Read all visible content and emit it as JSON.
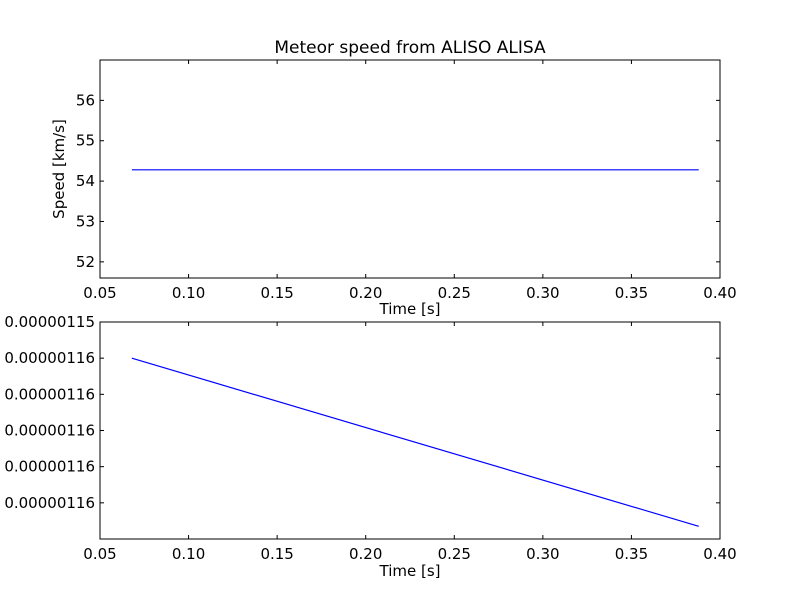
{
  "figure": {
    "background": "#ffffff"
  },
  "chart_data": [
    {
      "type": "line",
      "title": "Meteor speed from  ALISO ALISA",
      "xlabel": "Time [s]",
      "ylabel": "Speed [km/s]",
      "xlim": [
        0.05,
        0.4
      ],
      "ylim": [
        51.6,
        57.0
      ],
      "x_ticks": [
        0.05,
        0.1,
        0.15,
        0.2,
        0.25,
        0.3,
        0.35,
        0.4
      ],
      "x_tick_labels": [
        "0.05",
        "0.10",
        "0.15",
        "0.20",
        "0.25",
        "0.30",
        "0.35",
        "0.40"
      ],
      "y_ticks": [
        52,
        53,
        54,
        55,
        56
      ],
      "y_tick_labels": [
        "52",
        "53",
        "54",
        "55",
        "56"
      ],
      "grid": false,
      "series": [
        {
          "color": "#0000ff",
          "x": [
            0.068,
            0.388
          ],
          "y": [
            54.28,
            54.28
          ]
        }
      ]
    },
    {
      "type": "line",
      "title": "",
      "xlabel": "Time [s]",
      "ylabel": "",
      "xlim": [
        0.05,
        0.4
      ],
      "ylim": [
        0,
        6
      ],
      "x_ticks": [
        0.05,
        0.1,
        0.15,
        0.2,
        0.25,
        0.3,
        0.35,
        0.4
      ],
      "x_tick_labels": [
        "0.05",
        "0.10",
        "0.15",
        "0.20",
        "0.25",
        "0.30",
        "0.35",
        "0.40"
      ],
      "y_ticks": [
        6,
        5,
        4,
        3,
        2,
        1
      ],
      "y_tick_labels": [
        "0.00000115",
        "0.00000116",
        "0.00000116",
        "0.00000116",
        "0.00000116",
        "0.00000116"
      ],
      "grid": false,
      "series": [
        {
          "color": "#0000ff",
          "x": [
            0.068,
            0.388
          ],
          "y": [
            5.0,
            0.35
          ]
        }
      ]
    }
  ]
}
